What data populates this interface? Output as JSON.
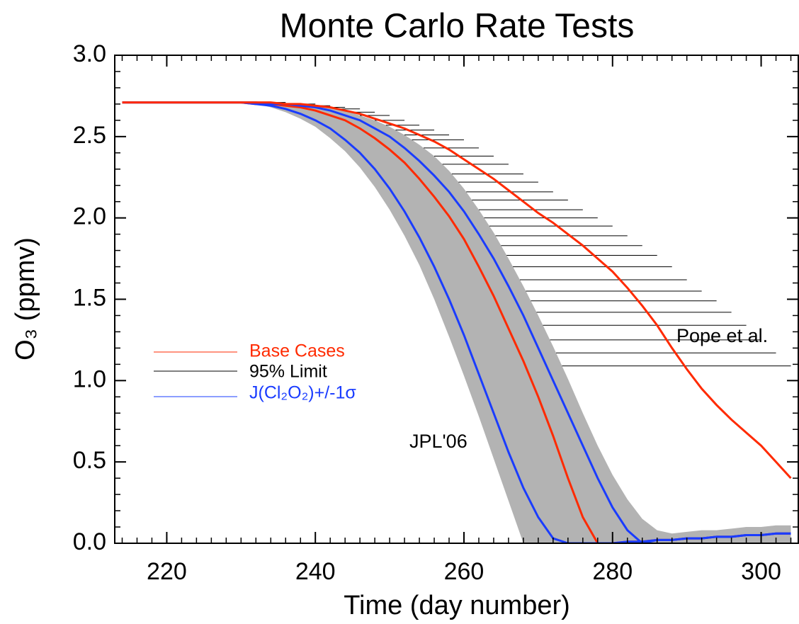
{
  "chart_data": {
    "type": "line",
    "title": "Monte Carlo Rate Tests",
    "x_label": "Time (day number)",
    "y_label": "O₃ (ppmv)",
    "xlim": [
      213,
      305
    ],
    "ylim": [
      0,
      3
    ],
    "xticks": [
      220,
      240,
      260,
      280,
      300
    ],
    "yticks": [
      {
        "value": 0,
        "label": "0.0"
      },
      0.5,
      {
        "value": 1,
        "label": "1.0"
      },
      1.5,
      {
        "value": 2,
        "label": "2.0"
      },
      2.5,
      {
        "value": 3,
        "label": "3.0"
      }
    ],
    "annotations": [
      {
        "text": "Pope et al."
      },
      {
        "text": "JPL'06"
      }
    ],
    "x": [
      214,
      216,
      218,
      220,
      222,
      224,
      226,
      228,
      230,
      232,
      234,
      236,
      238,
      240,
      242,
      244,
      246,
      248,
      250,
      252,
      254,
      256,
      258,
      260,
      262,
      264,
      266,
      268,
      270,
      272,
      274,
      276,
      278,
      280,
      282,
      284,
      286,
      288,
      290,
      292,
      294,
      296,
      298,
      300,
      302,
      304
    ],
    "band": {
      "color": "#b3b3b3",
      "lower": [
        2.71,
        2.71,
        2.71,
        2.71,
        2.71,
        2.71,
        2.71,
        2.71,
        2.71,
        2.7,
        2.68,
        2.65,
        2.61,
        2.56,
        2.49,
        2.41,
        2.31,
        2.19,
        2.05,
        1.89,
        1.71,
        1.5,
        1.27,
        1.03,
        0.78,
        0.52,
        0.26,
        0,
        0,
        0,
        0,
        0,
        0,
        0,
        0,
        0,
        0,
        0,
        0,
        0,
        0,
        0,
        0,
        0,
        0,
        0
      ],
      "upper": [
        2.71,
        2.71,
        2.71,
        2.71,
        2.71,
        2.71,
        2.71,
        2.71,
        2.71,
        2.71,
        2.71,
        2.7,
        2.7,
        2.69,
        2.68,
        2.66,
        2.63,
        2.6,
        2.56,
        2.51,
        2.45,
        2.38,
        2.29,
        2.18,
        2.05,
        1.91,
        1.75,
        1.58,
        1.4,
        1.21,
        1.01,
        0.8,
        0.6,
        0.42,
        0.27,
        0.15,
        0.08,
        0.06,
        0.07,
        0.08,
        0.08,
        0.09,
        0.1,
        0.1,
        0.11,
        0.11
      ]
    },
    "series": [
      {
        "name": "Base Cases",
        "color": "#ff2a00",
        "style": "line",
        "values": [
          2.71,
          2.71,
          2.71,
          2.71,
          2.71,
          2.71,
          2.71,
          2.71,
          2.71,
          2.7,
          2.7,
          2.69,
          2.68,
          2.66,
          2.63,
          2.6,
          2.55,
          2.49,
          2.42,
          2.34,
          2.24,
          2.13,
          2.01,
          1.87,
          1.7,
          1.52,
          1.32,
          1.12,
          0.9,
          0.66,
          0.4,
          0.16,
          0,
          0,
          0.01,
          0.01,
          0.02,
          0.02,
          0.03,
          0.03,
          0.04,
          0.04,
          0.05,
          0.05,
          0.06,
          0.06
        ]
      },
      {
        "name": "95% Limit",
        "color": "#000000",
        "style": "hatch",
        "values": [
          2.71,
          2.71,
          2.71,
          2.71,
          2.71,
          2.71,
          2.71,
          2.71,
          2.71,
          2.71,
          2.71,
          2.71,
          2.7,
          2.7,
          2.69,
          2.68,
          2.67,
          2.65,
          2.63,
          2.6,
          2.57,
          2.54,
          2.51,
          2.48,
          2.43,
          2.38,
          2.33,
          2.27,
          2.22,
          2.16,
          2.11,
          2.05,
          2.0,
          1.95,
          1.89,
          1.83,
          1.77,
          1.7,
          1.62,
          1.55,
          1.49,
          1.42,
          1.34,
          1.25,
          1.17,
          1.09
        ]
      },
      {
        "name": "J(Cl₂O₂)+/-1σ",
        "color": "#1a3cff",
        "style": "line",
        "values": [
          2.71,
          2.71,
          2.71,
          2.71,
          2.71,
          2.71,
          2.71,
          2.71,
          2.71,
          2.7,
          2.69,
          2.67,
          2.64,
          2.6,
          2.55,
          2.48,
          2.4,
          2.3,
          2.18,
          2.04,
          1.88,
          1.7,
          1.5,
          1.28,
          1.04,
          0.8,
          0.56,
          0.34,
          0.16,
          0.03,
          0,
          0,
          0,
          0,
          0.01,
          0.01,
          0.02,
          0.02,
          0.03,
          0.03,
          0.04,
          0.04,
          0.05,
          0.05,
          0.06,
          0.06
        ]
      },
      {
        "color": "#1a3cff",
        "style": "line",
        "values": [
          2.71,
          2.71,
          2.71,
          2.71,
          2.71,
          2.71,
          2.71,
          2.71,
          2.71,
          2.71,
          2.7,
          2.7,
          2.69,
          2.68,
          2.66,
          2.63,
          2.6,
          2.55,
          2.5,
          2.43,
          2.35,
          2.26,
          2.16,
          2.04,
          1.9,
          1.75,
          1.58,
          1.4,
          1.2,
          1.0,
          0.8,
          0.6,
          0.4,
          0.22,
          0.08,
          0,
          0.02,
          0.02,
          0.03,
          0.03,
          0.04,
          0.04,
          0.05,
          0.05,
          0.06,
          0.06
        ]
      },
      {
        "color": "#ff2a00",
        "style": "line",
        "values": [
          2.71,
          2.71,
          2.71,
          2.71,
          2.71,
          2.71,
          2.71,
          2.71,
          2.71,
          2.71,
          2.71,
          2.7,
          2.7,
          2.69,
          2.68,
          2.66,
          2.64,
          2.61,
          2.58,
          2.55,
          2.51,
          2.47,
          2.42,
          2.36,
          2.3,
          2.24,
          2.17,
          2.1,
          2.03,
          1.97,
          1.9,
          1.83,
          1.75,
          1.67,
          1.57,
          1.46,
          1.34,
          1.2,
          1.07,
          0.95,
          0.85,
          0.76,
          0.68,
          0.6,
          0.5,
          0.4
        ]
      }
    ]
  }
}
